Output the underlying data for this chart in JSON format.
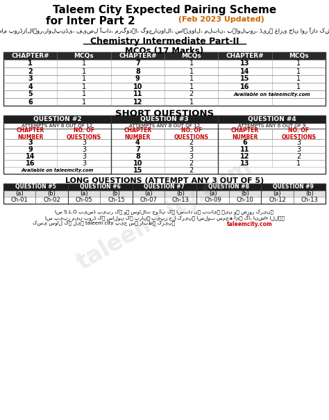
{
  "title_line1": "Taleem City Expected Pairing Scheme",
  "title_line2": "for Inter Part 2",
  "title_orange": " (Feb 2023 Updated)",
  "urdu_text": "پنجاب کے تمام بورڈز(لاہور،راولپنڈی، فیصل آباد، مرگودہا، گوجرانوالا، ساہیوال، ملتان، بہاولپور، ڈیرہ غازی خان اور آزاد کشمیر) کے لیے",
  "subtitle": "Chemistry Intermediate Part-II",
  "mcq_title": "MCQs (17 Marks)",
  "mcq_headers": [
    "CHAPTER#",
    "MCQs",
    "CHAPTER#",
    "MCQs",
    "CHAPTER#",
    "MCQs"
  ],
  "mcq_data": [
    [
      "1",
      "1",
      "7",
      "1",
      "13",
      "1"
    ],
    [
      "2",
      "1",
      "8",
      "1",
      "14",
      "1"
    ],
    [
      "3",
      "1",
      "9",
      "1",
      "15",
      "1"
    ],
    [
      "4",
      "1",
      "10",
      "1",
      "16",
      "1"
    ],
    [
      "5",
      "1",
      "11",
      "2",
      "",
      ""
    ],
    [
      "6",
      "1",
      "12",
      "1",
      "",
      ""
    ]
  ],
  "mcq_available": "Available on taleemcity.com",
  "sq_title": "SHORT QUESTIONS",
  "sq_q2_header": "QUESTION #2",
  "sq_q2_sub": "ATTEMPTS ANY 8 OUT OF 12",
  "sq_q3_header": "QUESTION #3",
  "sq_q3_sub": "ATTEMPTS ANY 8 OUT OF 12",
  "sq_q4_header": "QUESTION #4",
  "sq_q4_sub": "ATTEMPTS ANY 6 OUT OF 9",
  "sq_data_q2": [
    [
      "3",
      "3"
    ],
    [
      "9",
      "3"
    ],
    [
      "14",
      "3"
    ],
    [
      "16",
      "3"
    ]
  ],
  "sq_data_q3": [
    [
      "4",
      "2"
    ],
    [
      "7",
      "3"
    ],
    [
      "8",
      "3"
    ],
    [
      "10",
      "2"
    ],
    [
      "15",
      "2"
    ]
  ],
  "sq_data_q4": [
    [
      "6",
      "3"
    ],
    [
      "11",
      "3"
    ],
    [
      "12",
      "2"
    ],
    [
      "13",
      "1"
    ]
  ],
  "sq_available": "Available on taleemcity.com",
  "lq_title": "LONG QUESTIONS (ATTEMPT ANY 3 OUT OF 5)",
  "lq_q_headers": [
    "QUESTION #5",
    "QUESTION #6",
    "QUESTION #7",
    "QUESTION #8",
    "QUESTION #9"
  ],
  "lq_ab_headers": [
    "(a)",
    "(b)",
    "(a)",
    "(b)",
    "(a)",
    "(b)",
    "(a)",
    "(b)",
    "(a)",
    "(b)"
  ],
  "lq_data": [
    "Ch-01",
    "Ch-02",
    "Ch-05",
    "Ch-15",
    "Ch-07",
    "Ch-13",
    "Ch-09",
    "Ch-10",
    "Ch-12",
    "Ch-13"
  ],
  "footer1": "اس S.L.O بیسڈ پیپر کۛ وہ سوالات جو آپ کے استاد نے بتائے ہیں وہ ضرور کریں۔",
  "footer2": "اس پیپر میں بورڈ کے سالوں کے پرانے پیپر حل کریں۔ اسلوب سمجھ آئے گا، انشاء اللہ۔",
  "footer3": "کسی سوال کے لیے taleem city پیج سے رابطہ کریں۔",
  "website": "taleemcity.com",
  "bg_color": "#ffffff",
  "red_color": "#cc0000",
  "orange_color": "#cc6600"
}
